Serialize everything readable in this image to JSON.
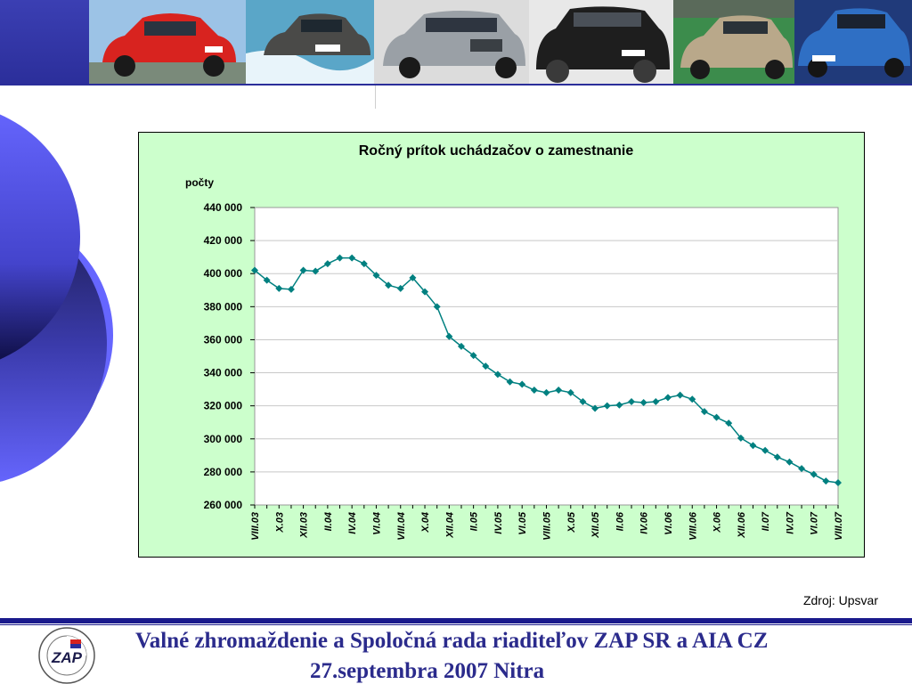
{
  "header": {
    "photos": [
      {
        "name": "car-photo-red-hatchback",
        "bg": "#9cc3e6",
        "car": "#d8231f"
      },
      {
        "name": "car-photo-suv-water",
        "bg": "#5aa6c8",
        "car": "#4a4a48"
      },
      {
        "name": "car-photo-silver-suv",
        "bg": "#dcdcdc",
        "car": "#9aa0a6"
      },
      {
        "name": "car-photo-black-suv",
        "bg": "#e8e8e8",
        "car": "#1e1e1e"
      },
      {
        "name": "car-photo-gold-hatchback",
        "bg": "#3c8c4c",
        "car": "#b9a88a"
      },
      {
        "name": "car-photo-blue-hatchback",
        "bg": "#203a7a",
        "car": "#2f6fc4"
      }
    ]
  },
  "colors": {
    "brand": "#2b2e9a",
    "chart_bg": "#ccffcc",
    "series": "#008080",
    "footer_text": "#2b2b8c"
  },
  "chart_data": {
    "type": "line",
    "title": "Ročný prítok uchádzačov o zamestnanie",
    "ylabel": "počty",
    "xlabel": "",
    "ylim": [
      260000,
      440000
    ],
    "yticks": [
      260000,
      280000,
      300000,
      320000,
      340000,
      360000,
      380000,
      400000,
      420000,
      440000
    ],
    "ytick_labels": [
      "260 000",
      "280 000",
      "300 000",
      "320 000",
      "340 000",
      "360 000",
      "380 000",
      "400 000",
      "420 000",
      "440 000"
    ],
    "grid": true,
    "x": [
      "VIII.03",
      "IX.03",
      "X.03",
      "XI.03",
      "XII.03",
      "I.04",
      "II.04",
      "III.04",
      "IV.04",
      "V.04",
      "VI.04",
      "VII.04",
      "VIII.04",
      "IX.04",
      "X.04",
      "XI.04",
      "XII.04",
      "I.05",
      "II.05",
      "III.05",
      "IV.05",
      "V.05",
      "VI.05",
      "VII.05",
      "VIII.05",
      "IX.05",
      "X.05",
      "XI.05",
      "XII.05",
      "I.06",
      "II.06",
      "III.06",
      "IV.06",
      "V.06",
      "VI.06",
      "VII.06",
      "VIII.06",
      "IX.06",
      "X.06",
      "XI.06",
      "XII.06",
      "I.07",
      "II.07",
      "III.07",
      "IV.07",
      "V.07",
      "VI.07",
      "VII.07",
      "VIII.07"
    ],
    "xtick_labels": [
      "VIII.03",
      "X.03",
      "XII.03",
      "II.04",
      "IV.04",
      "VI.04",
      "VIII.04",
      "X.04",
      "XII.04",
      "II.05",
      "IV.05",
      "VI.05",
      "VIII.05",
      "X.05",
      "XII.05",
      "II.06",
      "IV.06",
      "VI.06",
      "VIII.06",
      "X.06",
      "XII.06",
      "II.07",
      "IV.07",
      "VI.07",
      "VIII.07"
    ],
    "series": [
      {
        "values": [
          402000,
          396000,
          391000,
          390500,
          402000,
          401500,
          406000,
          409500,
          409500,
          406000,
          399000,
          393000,
          391000,
          397500,
          389000,
          380000,
          362000,
          356000,
          350500,
          344000,
          339000,
          334500,
          333000,
          329500,
          328000,
          329500,
          328000,
          322500,
          318500,
          320000,
          320500,
          322500,
          322000,
          322500,
          325000,
          326500,
          324000,
          316500,
          313000,
          309500,
          300500,
          296000,
          293000,
          289000,
          286000,
          282000,
          278500,
          274500,
          273500
        ]
      }
    ]
  },
  "source_note": "Zdroj: Upsvar",
  "footer": {
    "line1": "Valné zhromaždenie a Spoločná rada riaditeľov ZAP SR a AIA CZ",
    "line2": "27.septembra 2007 Nitra",
    "logo_text": "ZAP"
  }
}
